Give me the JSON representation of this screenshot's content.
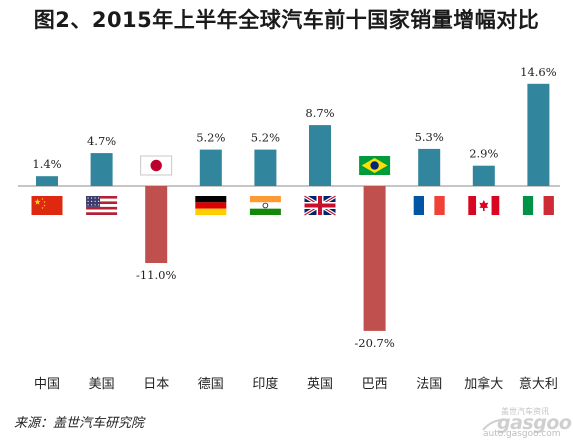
{
  "chart_data": {
    "type": "bar",
    "title": "图2、2015年上半年全球汽车前十国家销量增幅对比",
    "categories": [
      "中国",
      "美国",
      "日本",
      "德国",
      "印度",
      "英国",
      "巴西",
      "法国",
      "加拿大",
      "意大利"
    ],
    "values": [
      1.4,
      4.7,
      -11.0,
      5.2,
      5.2,
      8.7,
      -20.7,
      5.3,
      2.9,
      14.6
    ],
    "value_labels": [
      "1.4%",
      "4.7%",
      "-11.0%",
      "5.2%",
      "5.2%",
      "8.7%",
      "-20.7%",
      "5.3%",
      "2.9%",
      "14.6%"
    ],
    "flags": [
      "china-flag",
      "usa-flag",
      "japan-flag",
      "germany-flag",
      "india-flag",
      "uk-flag",
      "brazil-flag",
      "france-flag",
      "canada-flag",
      "italy-flag"
    ],
    "positive_color": "#31859c",
    "negative_color": "#c0504d",
    "xlabel": "",
    "ylabel": "",
    "grid": false,
    "legend": "none"
  },
  "source": "来源：盖世汽车研究院",
  "watermark": {
    "top": "盖世汽车资讯",
    "logo": "gasgoo",
    "url": "auto.gasgoo.com"
  }
}
